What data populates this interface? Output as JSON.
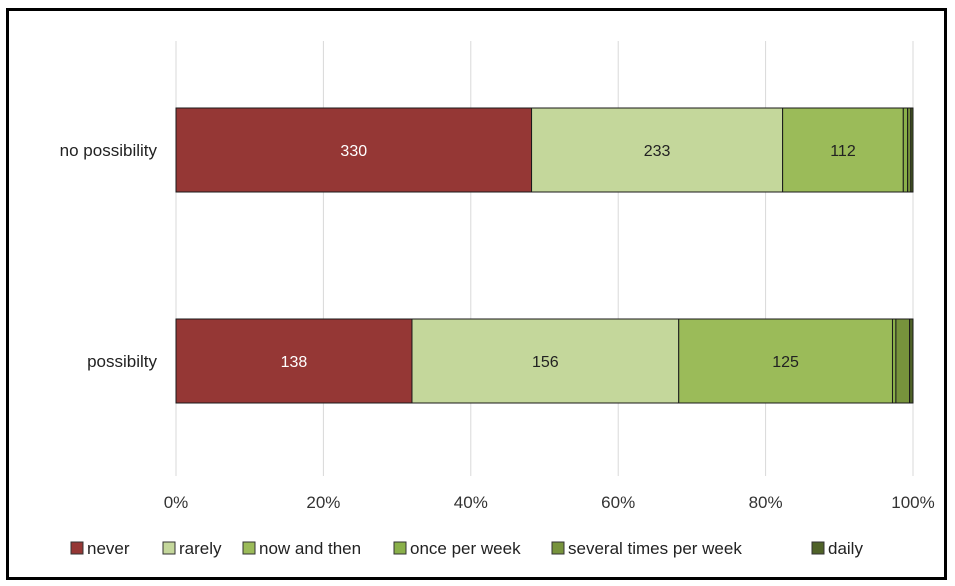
{
  "chart_data": {
    "type": "bar",
    "orientation": "horizontal",
    "stacked": "percent",
    "title": "",
    "xlabel": "",
    "ylabel": "",
    "xlim": [
      0,
      100
    ],
    "x_ticks": [
      "0%",
      "20%",
      "40%",
      "60%",
      "80%",
      "100%"
    ],
    "grid": "vertical",
    "legend_position": "bottom",
    "categories": [
      "no possibility",
      "possibilty"
    ],
    "series": [
      {
        "name": "never",
        "values": [
          330,
          138
        ],
        "color": "#953735",
        "label_color": "#ffffff"
      },
      {
        "name": "rarely",
        "values": [
          233,
          156
        ],
        "color": "#c4d79b",
        "label_color": "#222222"
      },
      {
        "name": "now and then",
        "values": [
          112,
          125
        ],
        "color": "#9bbb59",
        "label_color": "#222222"
      },
      {
        "name": "once per week",
        "values": [
          4,
          2
        ],
        "color": "#8ab04a",
        "label_color": "#222222"
      },
      {
        "name": "several times per week",
        "values": [
          3,
          8
        ],
        "color": "#77933c",
        "label_color": "#222222"
      },
      {
        "name": "daily",
        "values": [
          2,
          2
        ],
        "color": "#4f6228",
        "label_color": "#222222"
      }
    ],
    "data_labels": [
      [
        "330",
        "233",
        "112",
        "",
        "",
        ""
      ],
      [
        "138",
        "156",
        "125",
        "",
        "",
        ""
      ]
    ]
  }
}
